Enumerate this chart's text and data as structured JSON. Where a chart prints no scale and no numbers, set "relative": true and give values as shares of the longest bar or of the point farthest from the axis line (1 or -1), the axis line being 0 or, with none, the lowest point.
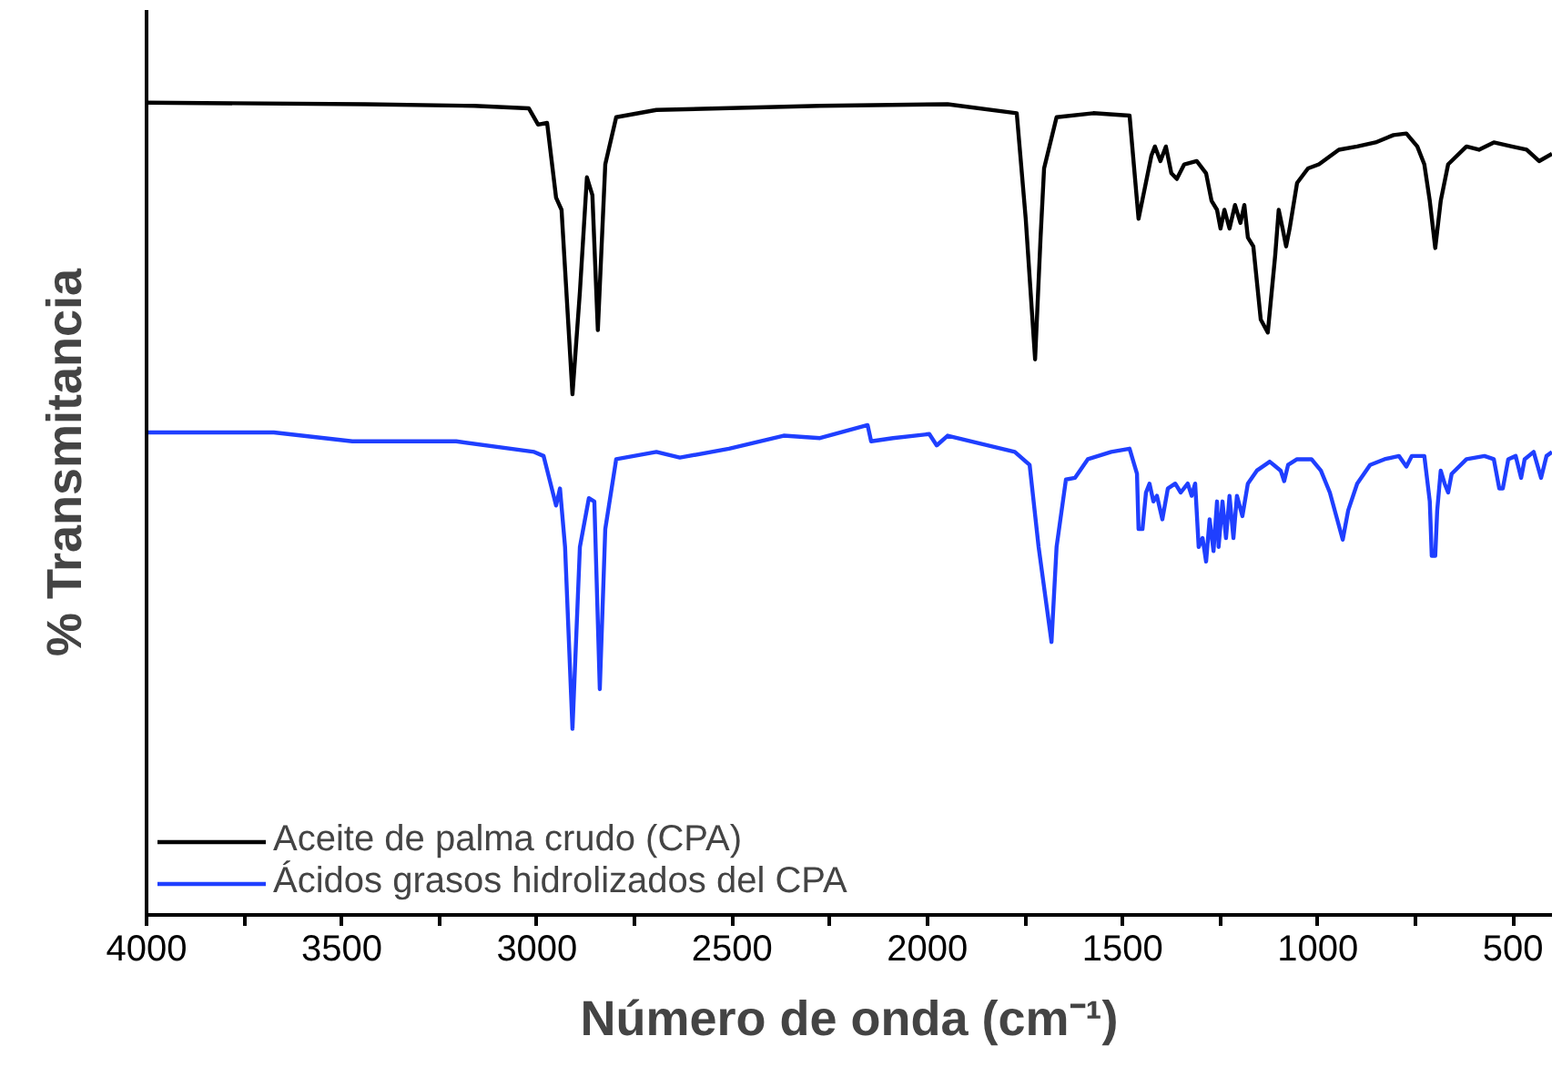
{
  "chart_data": {
    "type": "line",
    "relative": true,
    "xlabel": "Número de onda (cm⁻¹)",
    "ylabel": "% Transmitancia",
    "xlim": [
      4000,
      400
    ],
    "xticks": [
      4000,
      {
        "value": 3750,
        "label": null
      },
      3500,
      {
        "value": 3250,
        "label": null
      },
      3000,
      {
        "value": 2750,
        "label": null
      },
      2500,
      {
        "value": 2250,
        "label": null
      },
      2000,
      {
        "value": 1750,
        "label": null
      },
      1500,
      {
        "value": 1250,
        "label": null
      },
      1000,
      {
        "value": 750,
        "label": null
      },
      500
    ],
    "grid": false,
    "legend": "bottom left",
    "marker": "none",
    "line_style": "solid",
    "series": [
      {
        "name": "Aceite de palma crudo (CPA)",
        "color": "#000000",
        "x": [
          4000,
          3440,
          3161,
          3021,
          2997,
          2974,
          2951,
          2937,
          2909,
          2890,
          2872,
          2858,
          2844,
          2825,
          2797,
          2694,
          2275,
          1948,
          1771,
          1748,
          1724,
          1710,
          1701,
          1669,
          1575,
          1482,
          1459,
          1445,
          1426,
          1417,
          1403,
          1389,
          1375,
          1361,
          1342,
          1310,
          1286,
          1272,
          1258,
          1249,
          1239,
          1226,
          1212,
          1198,
          1188,
          1179,
          1165,
          1146,
          1128,
          1109,
          1100,
          1090,
          1081,
          1072,
          1053,
          1025,
          997,
          946,
          899,
          852,
          806,
          773,
          745,
          727,
          713,
          699,
          685,
          666,
          619,
          587,
          549,
          503,
          465,
          433,
          400
        ],
        "values": [
          1.0,
          0.998,
          0.996,
          0.993,
          0.973,
          0.975,
          0.883,
          0.868,
          0.641,
          0.767,
          0.908,
          0.886,
          0.72,
          0.924,
          0.982,
          0.991,
          0.996,
          0.998,
          0.987,
          0.857,
          0.684,
          0.834,
          0.919,
          0.982,
          0.987,
          0.984,
          0.857,
          0.89,
          0.935,
          0.946,
          0.928,
          0.946,
          0.913,
          0.906,
          0.924,
          0.928,
          0.913,
          0.879,
          0.868,
          0.845,
          0.868,
          0.845,
          0.874,
          0.852,
          0.874,
          0.834,
          0.823,
          0.733,
          0.717,
          0.812,
          0.868,
          0.845,
          0.823,
          0.845,
          0.901,
          0.919,
          0.924,
          0.942,
          0.946,
          0.951,
          0.96,
          0.962,
          0.946,
          0.924,
          0.879,
          0.821,
          0.879,
          0.924,
          0.946,
          0.942,
          0.951,
          0.946,
          0.942,
          0.928,
          0.937
        ]
      },
      {
        "name": "Ácidos grasos hidrolizados del CPA",
        "color": "#1f3fff",
        "x": [
          4000,
          3674,
          3473,
          3207,
          3007,
          2983,
          2951,
          2941,
          2928,
          2909,
          2890,
          2867,
          2853,
          2839,
          2825,
          2797,
          2694,
          2634,
          2508,
          2368,
          2275,
          2153,
          2144,
          2088,
          1995,
          1976,
          1948,
          1776,
          1738,
          1715,
          1682,
          1669,
          1645,
          1622,
          1589,
          1529,
          1482,
          1463,
          1459,
          1449,
          1440,
          1431,
          1421,
          1412,
          1398,
          1384,
          1365,
          1351,
          1333,
          1323,
          1314,
          1305,
          1295,
          1286,
          1277,
          1267,
          1258,
          1254,
          1244,
          1235,
          1226,
          1216,
          1207,
          1193,
          1179,
          1156,
          1123,
          1095,
          1086,
          1076,
          1053,
          1016,
          992,
          969,
          936,
          922,
          899,
          866,
          829,
          792,
          773,
          759,
          727,
          713,
          708,
          699,
          694,
          685,
          675,
          666,
          657,
          619,
          573,
          549,
          535,
          526,
          512,
          493,
          479,
          470,
          447,
          428,
          414,
          400
        ],
        "values": [
          0.594,
          0.594,
          0.583,
          0.583,
          0.57,
          0.565,
          0.504,
          0.525,
          0.453,
          0.229,
          0.453,
          0.513,
          0.509,
          0.278,
          0.475,
          0.561,
          0.57,
          0.563,
          0.574,
          0.59,
          0.587,
          0.603,
          0.583,
          0.587,
          0.592,
          0.578,
          0.59,
          0.57,
          0.554,
          0.453,
          0.336,
          0.453,
          0.536,
          0.538,
          0.561,
          0.57,
          0.574,
          0.543,
          0.475,
          0.475,
          0.52,
          0.531,
          0.509,
          0.516,
          0.487,
          0.525,
          0.531,
          0.52,
          0.531,
          0.516,
          0.531,
          0.453,
          0.464,
          0.435,
          0.487,
          0.448,
          0.509,
          0.453,
          0.509,
          0.464,
          0.516,
          0.464,
          0.516,
          0.491,
          0.531,
          0.547,
          0.558,
          0.547,
          0.534,
          0.554,
          0.561,
          0.561,
          0.547,
          0.52,
          0.462,
          0.498,
          0.531,
          0.554,
          0.561,
          0.565,
          0.552,
          0.565,
          0.565,
          0.509,
          0.442,
          0.442,
          0.498,
          0.547,
          0.531,
          0.52,
          0.543,
          0.561,
          0.565,
          0.561,
          0.525,
          0.525,
          0.561,
          0.565,
          0.538,
          0.561,
          0.57,
          0.538,
          0.565,
          0.57
        ]
      }
    ]
  }
}
